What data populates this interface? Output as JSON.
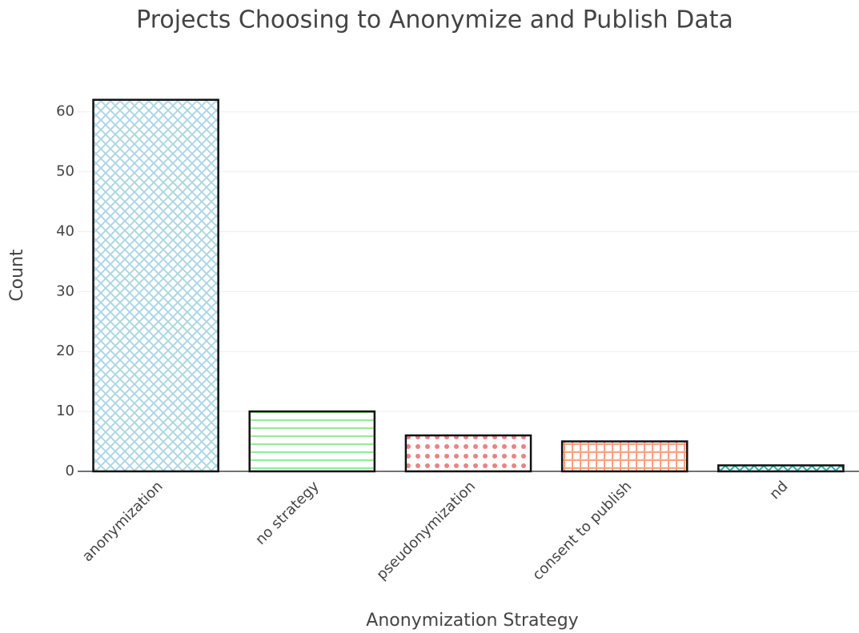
{
  "chart_data": {
    "type": "bar",
    "title": "Projects Choosing to Anonymize and Publish Data",
    "x_label": "Anonymization Strategy",
    "y_label": "Count",
    "categories": [
      "anonymization",
      "no strategy",
      "pseudonymization",
      "consent to publish",
      "nd"
    ],
    "values": [
      62,
      10,
      6,
      5,
      1
    ],
    "colors": [
      "#add8e6",
      "#90ee90",
      "#f08080",
      "#ffa07a",
      "#20b2aa"
    ],
    "patterns": [
      "x",
      "-",
      ".",
      "+",
      "x"
    ],
    "ylim": [
      0,
      65.3
    ],
    "yticks": [
      0,
      10,
      20,
      30,
      40,
      50,
      60
    ],
    "grid": true
  }
}
